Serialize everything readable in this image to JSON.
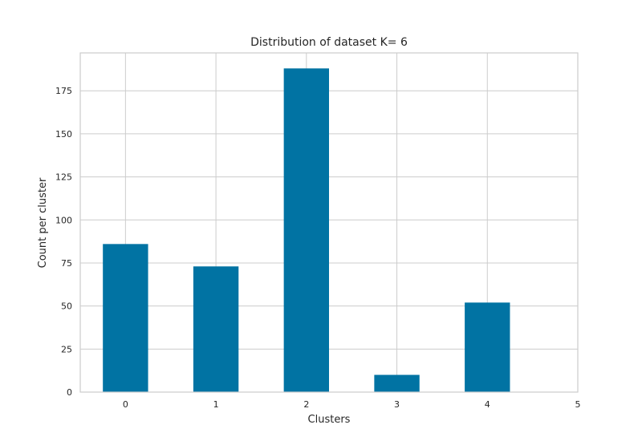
{
  "chart_data": {
    "type": "bar",
    "title": "Distribution of dataset K= 6",
    "xlabel": "Clusters",
    "ylabel": "Count per cluster",
    "categories": [
      "0",
      "1",
      "2",
      "3",
      "4",
      "5"
    ],
    "values": [
      86,
      73,
      188,
      10,
      52,
      0
    ],
    "xlim": [
      -0.5,
      5
    ],
    "ylim": [
      0,
      197
    ],
    "yticks": [
      0,
      25,
      50,
      75,
      100,
      125,
      150,
      175
    ],
    "grid": true,
    "legend": "none",
    "bar_color": "#0173a3",
    "grid_color": "#cccccc"
  }
}
